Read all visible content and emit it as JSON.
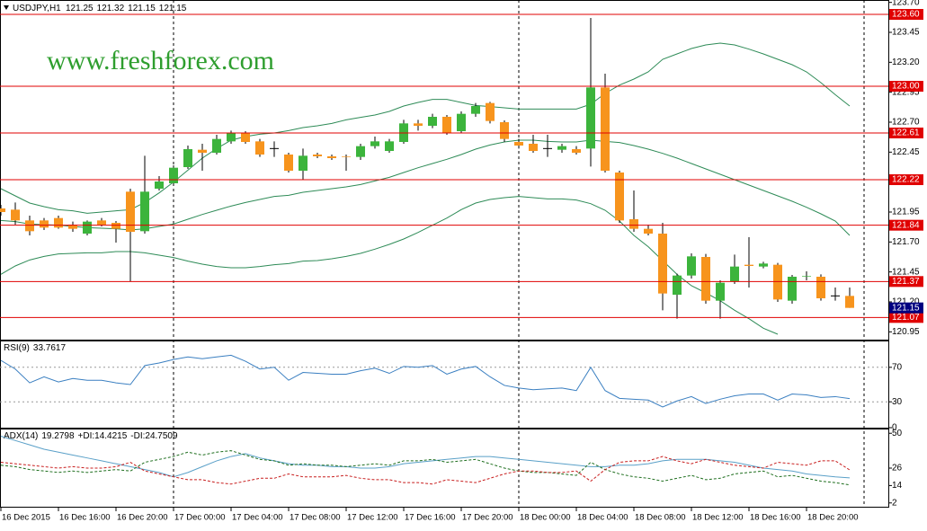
{
  "chart_data": [
    {
      "type": "candlestick",
      "symbol": "USDJPY,H1",
      "header_values": [
        121.25,
        121.32,
        121.15,
        121.15
      ],
      "watermark": "www.freshforex.com",
      "categories": [
        "16 Dec 2015",
        null,
        null,
        null,
        "16 Dec 16:00",
        null,
        null,
        null,
        "16 Dec 20:00",
        null,
        null,
        null,
        "17 Dec 00:00",
        null,
        null,
        null,
        "17 Dec 04:00",
        null,
        null,
        null,
        "17 Dec 08:00",
        null,
        null,
        null,
        "17 Dec 12:00",
        null,
        null,
        null,
        "17 Dec 16:00",
        null,
        null,
        null,
        "17 Dec 20:00",
        null,
        null,
        null,
        "18 Dec 00:00",
        null,
        null,
        null,
        "18 Dec 04:00",
        null,
        null,
        null,
        "18 Dec 08:00",
        null,
        null,
        null,
        "18 Dec 12:00",
        null,
        null,
        null,
        "18 Dec 16:00",
        null,
        null,
        null,
        "18 Dec 20:00",
        null,
        null,
        null
      ],
      "open": [
        121.98,
        121.97,
        121.88,
        121.88,
        121.9,
        121.845,
        121.77,
        121.88,
        121.86,
        122.12,
        121.79,
        122.145,
        122.19,
        122.325,
        122.47,
        122.445,
        122.54,
        122.61,
        122.54,
        122.48,
        122.43,
        122.295,
        122.43,
        122.415,
        122.415,
        122.41,
        122.5,
        122.46,
        122.535,
        122.69,
        122.67,
        122.745,
        122.625,
        122.77,
        122.86,
        122.7,
        122.535,
        122.52,
        122.48,
        122.47,
        122.475,
        122.48,
        122.99,
        122.28,
        121.89,
        121.81,
        121.77,
        121.26,
        121.42,
        121.575,
        121.21,
        121.37,
        121.51,
        121.495,
        121.51,
        121.21,
        121.41,
        121.41,
        121.25,
        121.25
      ],
      "high": [
        122.01,
        122.03,
        121.92,
        121.9,
        121.92,
        121.87,
        121.88,
        121.9,
        121.875,
        122.145,
        122.42,
        122.25,
        122.34,
        122.505,
        122.52,
        122.595,
        122.63,
        122.625,
        122.56,
        122.54,
        122.445,
        122.48,
        122.445,
        122.43,
        122.43,
        122.52,
        122.58,
        122.56,
        122.72,
        122.72,
        122.77,
        122.76,
        122.79,
        122.86,
        122.87,
        122.715,
        122.56,
        122.595,
        122.595,
        122.52,
        122.5,
        123.57,
        123.105,
        122.295,
        122.13,
        121.845,
        121.86,
        121.435,
        121.605,
        121.6,
        121.38,
        121.595,
        121.74,
        121.535,
        121.525,
        121.425,
        121.455,
        121.43,
        121.32,
        121.32
      ],
      "low": [
        121.92,
        121.845,
        121.755,
        121.8,
        121.81,
        121.785,
        121.755,
        121.83,
        121.695,
        121.37,
        121.77,
        122.13,
        122.17,
        122.31,
        122.295,
        122.43,
        122.52,
        122.52,
        122.41,
        122.41,
        122.28,
        122.22,
        122.4,
        122.385,
        122.295,
        122.385,
        122.48,
        122.445,
        122.52,
        122.63,
        122.65,
        122.595,
        122.61,
        122.745,
        122.69,
        122.535,
        122.48,
        122.445,
        122.41,
        122.445,
        122.43,
        122.33,
        122.28,
        121.86,
        121.785,
        121.755,
        121.13,
        121.06,
        121.395,
        121.185,
        121.06,
        121.35,
        121.32,
        121.48,
        121.2,
        121.185,
        121.38,
        121.21,
        121.21,
        121.15
      ],
      "close": [
        121.95,
        121.88,
        121.79,
        121.82,
        121.82,
        121.81,
        121.87,
        121.845,
        121.81,
        121.785,
        122.12,
        122.205,
        122.32,
        122.475,
        122.445,
        122.56,
        122.61,
        122.535,
        122.43,
        122.48,
        122.295,
        122.42,
        122.415,
        122.4,
        122.41,
        122.5,
        122.54,
        122.54,
        122.69,
        122.67,
        122.745,
        122.61,
        122.77,
        122.835,
        122.71,
        122.56,
        122.505,
        122.46,
        122.48,
        122.5,
        122.445,
        122.99,
        122.295,
        121.88,
        121.81,
        121.77,
        121.27,
        121.42,
        121.58,
        121.21,
        121.36,
        121.495,
        121.5,
        121.52,
        121.22,
        121.41,
        121.415,
        121.23,
        121.25,
        121.15
      ],
      "up_color": "#3cb43c",
      "down_color": "#f7941d",
      "series": [
        {
          "color": "#2e8b57",
          "values": [
            122.145,
            122.085,
            122.025,
            121.995,
            121.97,
            121.96,
            121.94,
            121.95,
            121.96,
            121.97,
            122.03,
            122.11,
            122.2,
            122.3,
            122.4,
            122.48,
            122.55,
            122.58,
            122.6,
            122.61,
            122.63,
            122.655,
            122.67,
            122.69,
            122.72,
            122.74,
            122.76,
            122.79,
            122.835,
            122.865,
            122.89,
            122.89,
            122.865,
            122.84,
            122.83,
            122.82,
            122.81,
            122.81,
            122.81,
            122.81,
            122.81,
            122.85,
            122.94,
            123.01,
            123.06,
            123.12,
            123.225,
            123.27,
            123.315,
            123.345,
            123.36,
            123.345,
            123.31,
            123.27,
            123.225,
            123.18,
            123.12,
            123.03,
            122.93,
            122.835
          ]
        },
        {
          "color": "#2e8b57",
          "values": [
            121.88,
            121.87,
            121.85,
            121.845,
            121.84,
            121.83,
            121.82,
            121.815,
            121.81,
            121.8,
            121.81,
            121.83,
            121.85,
            121.89,
            121.93,
            121.965,
            122.0,
            122.03,
            122.055,
            122.08,
            122.09,
            122.115,
            122.13,
            122.145,
            122.16,
            122.18,
            122.21,
            122.24,
            122.28,
            122.32,
            122.355,
            122.39,
            122.43,
            122.475,
            122.51,
            122.535,
            122.55,
            122.55,
            122.54,
            122.535,
            122.535,
            122.55,
            122.54,
            122.53,
            122.505,
            122.475,
            122.44,
            122.4,
            122.355,
            122.31,
            122.265,
            122.22,
            122.175,
            122.13,
            122.085,
            122.04,
            121.99,
            121.935,
            121.875,
            121.755
          ]
        },
        {
          "color": "#2e8b57",
          "values": [
            121.43,
            121.5,
            121.55,
            121.58,
            121.6,
            121.605,
            121.61,
            121.61,
            121.62,
            121.62,
            121.61,
            121.59,
            121.57,
            121.54,
            121.515,
            121.495,
            121.485,
            121.485,
            121.495,
            121.51,
            121.52,
            121.54,
            121.545,
            121.56,
            121.58,
            121.605,
            121.64,
            121.68,
            121.725,
            121.78,
            121.84,
            121.9,
            121.97,
            122.025,
            122.055,
            122.07,
            122.08,
            122.07,
            122.06,
            122.06,
            122.05,
            122.02,
            121.965,
            121.875,
            121.755,
            121.66,
            121.545,
            121.43,
            121.335,
            121.275,
            121.21,
            121.13,
            121.06,
            120.98,
            120.93,
            null,
            null,
            null,
            null,
            null
          ]
        }
      ],
      "levels": [
        {
          "value": 123.6,
          "label": "123.60"
        },
        {
          "value": 123,
          "label": "123.00"
        },
        122.61,
        122.22,
        121.84,
        121.37,
        121.07
      ],
      "level_color": "#e00000",
      "current_price": 121.15,
      "current_color": "#000080",
      "ylim": [
        120.885,
        123.72
      ],
      "yticks": [
        {
          "value": 123.7,
          "label": "123.70"
        },
        123.45,
        {
          "value": 123.2,
          "label": "123.20"
        },
        122.95,
        {
          "value": 122.7,
          "label": "122.70"
        },
        122.45,
        {
          "value": 122.2,
          "label": "122.20"
        },
        121.95,
        {
          "value": 121.7,
          "label": "121.70"
        },
        121.45,
        {
          "value": 121.2,
          "label": "121.20"
        },
        120.95
      ]
    },
    {
      "type": "line",
      "title": "RSI(9)",
      "last_value": 33.7617,
      "series": [
        {
          "color": "#3a7fc1",
          "values": [
            78,
            68,
            52,
            59,
            53,
            57,
            55,
            55,
            52,
            50,
            72,
            75,
            79,
            82,
            80,
            82,
            84,
            77,
            68,
            70,
            55,
            64,
            63,
            62,
            62,
            66,
            69,
            63,
            71,
            70,
            72,
            62,
            68,
            71,
            59,
            49,
            46,
            44,
            45,
            46,
            43,
            70,
            43,
            34,
            33,
            32,
            24,
            31,
            36,
            28,
            33,
            37,
            39,
            39,
            32,
            39,
            38,
            35,
            36,
            33.7617
          ]
        }
      ],
      "ylim": [
        0,
        100
      ],
      "yticks": [
        70,
        30,
        0
      ],
      "grid": true
    },
    {
      "type": "line",
      "title": "ADX(14)",
      "series": [
        {
          "name": "ADX(14)",
          "color": "#5aa0c8",
          "style": "solid",
          "last_value": 19.2798,
          "values": [
            48,
            45,
            42,
            39,
            37,
            35,
            33,
            31,
            29,
            27,
            25,
            23,
            20,
            23,
            27,
            31,
            34,
            36,
            33,
            31,
            29,
            28,
            28,
            27,
            27,
            26,
            26,
            27,
            29,
            30,
            31,
            32,
            33,
            34,
            34,
            33,
            32,
            31,
            30,
            29,
            28,
            27,
            27,
            28,
            28,
            29,
            31,
            32,
            32,
            32,
            31,
            30,
            28,
            26,
            25,
            24,
            22,
            21,
            20,
            19.2798
          ]
        },
        {
          "name": "+DI:",
          "color": "#1e6e1e",
          "style": "dashed",
          "last_value": 14.4215,
          "values": [
            28,
            27,
            25,
            24,
            23,
            24,
            23,
            24,
            25,
            24,
            30,
            32,
            34,
            37,
            35,
            37,
            38,
            35,
            32,
            31,
            28,
            29,
            28,
            28,
            27,
            28,
            29,
            28,
            31,
            31,
            32,
            30,
            31,
            32,
            29,
            26,
            24,
            23,
            23,
            22,
            21,
            30,
            25,
            22,
            20,
            19,
            17,
            19,
            21,
            18,
            19,
            22,
            23,
            24,
            20,
            21,
            19,
            17,
            16,
            14.4215
          ]
        },
        {
          "name": "-DI:",
          "color": "#c81e1e",
          "style": "dashed",
          "last_value": 24.7509,
          "values": [
            30,
            29,
            28,
            27,
            26,
            27,
            26,
            26,
            27,
            30,
            24,
            22,
            20,
            18,
            18,
            16,
            15,
            17,
            19,
            19,
            22,
            20,
            20,
            20,
            21,
            19,
            18,
            18,
            16,
            16,
            15,
            18,
            17,
            16,
            19,
            22,
            24,
            24,
            23,
            23,
            24,
            17,
            25,
            30,
            31,
            31,
            34,
            31,
            29,
            32,
            30,
            28,
            27,
            26,
            30,
            29,
            28,
            31,
            31,
            24.7509
          ]
        }
      ],
      "ylim": [
        0,
        52
      ],
      "yticks": [
        50,
        26,
        14,
        2
      ]
    }
  ]
}
